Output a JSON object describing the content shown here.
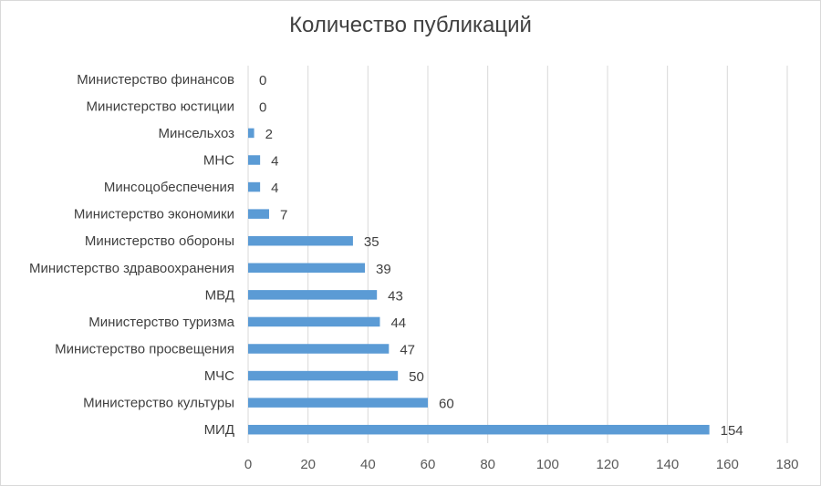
{
  "chart_data": {
    "type": "bar",
    "orientation": "horizontal",
    "title": "Количество публикаций",
    "xlabel": "",
    "ylabel": "",
    "xlim": [
      0,
      180
    ],
    "x_ticks": [
      "0",
      "20",
      "40",
      "60",
      "80",
      "100",
      "120",
      "140",
      "160",
      "180"
    ],
    "grid": true,
    "legend": "none",
    "bar_color": "#5b9bd5",
    "categories": [
      "Министерство финансов",
      "Министерство юстиции",
      "Минсельхоз",
      "МНС",
      "Минсоцобеспечения",
      "Министерство экономики",
      "Министерство обороны",
      "Министерство здравоохранения",
      "МВД",
      "Министерство туризма",
      "Министерство просвещения",
      "МЧС",
      "Министерство культуры",
      "МИД"
    ],
    "values": [
      0,
      0,
      2,
      4,
      4,
      7,
      35,
      39,
      43,
      44,
      47,
      50,
      60,
      154
    ]
  }
}
